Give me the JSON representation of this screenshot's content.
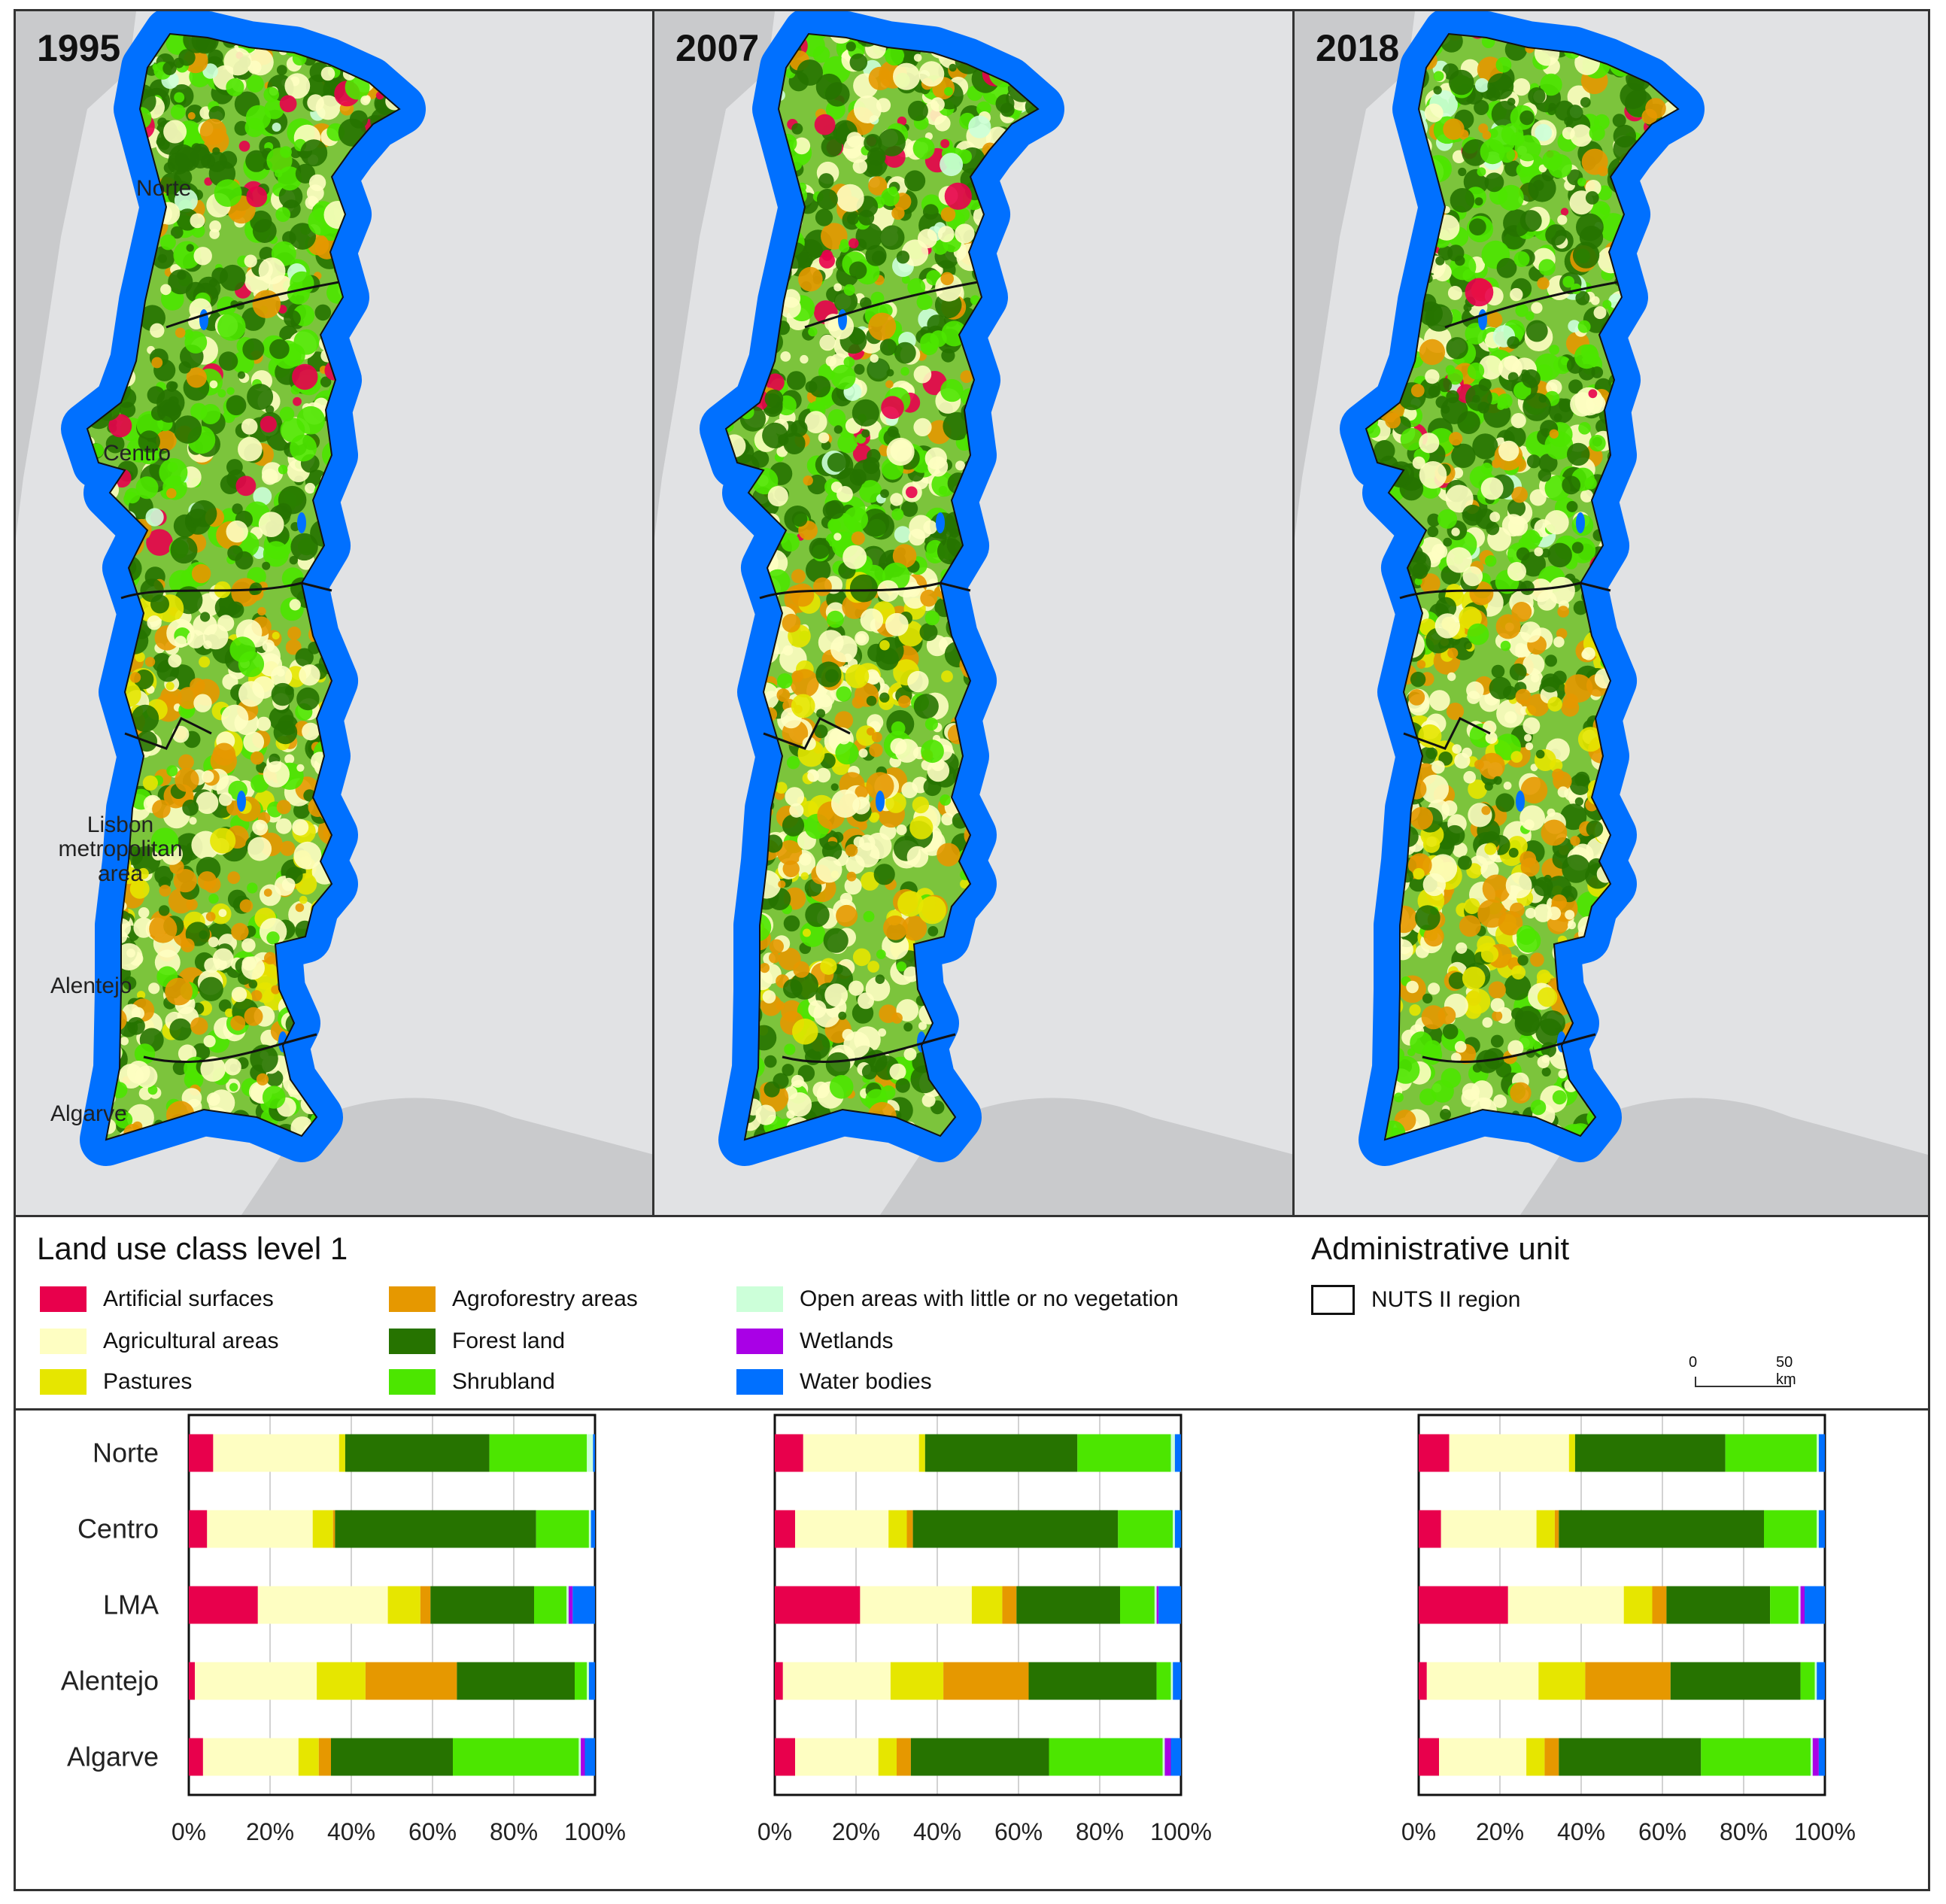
{
  "maps": [
    {
      "year": "1995"
    },
    {
      "year": "2007"
    },
    {
      "year": "2018"
    }
  ],
  "region_labels": {
    "norte": "Norte",
    "centro": "Centro",
    "lisbon": "Lisbon metropolitan area",
    "alentejo": "Alentejo",
    "algarve": "Algarve"
  },
  "legend": {
    "title": "Land use class level 1",
    "items": [
      {
        "label": "Artificial surfaces",
        "color": "#e8004c"
      },
      {
        "label": "Agricultural areas",
        "color": "#fefec2"
      },
      {
        "label": "Pastures",
        "color": "#e6e600"
      },
      {
        "label": "Agroforestry areas",
        "color": "#e69800"
      },
      {
        "label": "Forest land",
        "color": "#267300"
      },
      {
        "label": "Shrubland",
        "color": "#4ce600"
      },
      {
        "label": "Open areas with little or no vegetation",
        "color": "#ccffd9"
      },
      {
        "label": "Wetlands",
        "color": "#a900e6"
      },
      {
        "label": "Water bodies",
        "color": "#0070ff"
      }
    ],
    "admin_title": "Administrative unit",
    "admin_item": "NUTS II region",
    "scale_zero": "0",
    "scale_end": "50 km"
  },
  "chart_data": [
    {
      "type": "bar",
      "orientation": "horizontal-stacked-100",
      "year": "1995",
      "categories": [
        "Norte",
        "Centro",
        "LMA",
        "Alentejo",
        "Algarve"
      ],
      "xticks": [
        "0%",
        "20%",
        "40%",
        "60%",
        "80%",
        "100%"
      ],
      "xlim": [
        0,
        100
      ],
      "series": [
        {
          "name": "Artificial surfaces",
          "values": [
            6,
            4.5,
            17,
            1.5,
            3.5
          ]
        },
        {
          "name": "Agricultural areas",
          "values": [
            31,
            26,
            32,
            30,
            23.5
          ]
        },
        {
          "name": "Pastures",
          "values": [
            1.5,
            5,
            8,
            12,
            5
          ]
        },
        {
          "name": "Agroforestry areas",
          "values": [
            0,
            0.5,
            2.5,
            22.5,
            3
          ]
        },
        {
          "name": "Forest land",
          "values": [
            35.5,
            49.5,
            25.5,
            29,
            30
          ]
        },
        {
          "name": "Shrubland",
          "values": [
            24,
            13,
            8,
            3,
            31
          ]
        },
        {
          "name": "Open areas with little or no vegetation",
          "values": [
            1.5,
            0.5,
            0.5,
            0.5,
            0.5
          ]
        },
        {
          "name": "Wetlands",
          "values": [
            0,
            0,
            1,
            0,
            1
          ]
        },
        {
          "name": "Water bodies",
          "values": [
            0.5,
            1,
            5.5,
            1.5,
            2.5
          ]
        }
      ]
    },
    {
      "type": "bar",
      "orientation": "horizontal-stacked-100",
      "year": "2007",
      "categories": [
        "Norte",
        "Centro",
        "LMA",
        "Alentejo",
        "Algarve"
      ],
      "xticks": [
        "0%",
        "20%",
        "40%",
        "60%",
        "80%",
        "100%"
      ],
      "xlim": [
        0,
        100
      ],
      "series": [
        {
          "name": "Artificial surfaces",
          "values": [
            7,
            5,
            21,
            2,
            5
          ]
        },
        {
          "name": "Agricultural areas",
          "values": [
            28.5,
            23,
            27.5,
            26.5,
            20.5
          ]
        },
        {
          "name": "Pastures",
          "values": [
            1.5,
            4.5,
            7.5,
            13,
            4.5
          ]
        },
        {
          "name": "Agroforestry areas",
          "values": [
            0,
            1.5,
            3.5,
            21,
            3.5
          ]
        },
        {
          "name": "Forest land",
          "values": [
            37.5,
            50.5,
            25.5,
            31.5,
            34
          ]
        },
        {
          "name": "Shrubland",
          "values": [
            23,
            13.5,
            8.5,
            3.5,
            28
          ]
        },
        {
          "name": "Open areas with little or no vegetation",
          "values": [
            1,
            0.5,
            0.5,
            0.5,
            0.5
          ]
        },
        {
          "name": "Wetlands",
          "values": [
            0,
            0,
            0.5,
            0,
            1.5
          ]
        },
        {
          "name": "Water bodies",
          "values": [
            1.5,
            1.5,
            5.5,
            2,
            2.5
          ]
        }
      ]
    },
    {
      "type": "bar",
      "orientation": "horizontal-stacked-100",
      "year": "2018",
      "categories": [
        "Norte",
        "Centro",
        "LMA",
        "Alentejo",
        "Algarve"
      ],
      "xticks": [
        "0%",
        "20%",
        "40%",
        "60%",
        "80%",
        "100%"
      ],
      "xlim": [
        0,
        100
      ],
      "series": [
        {
          "name": "Artificial surfaces",
          "values": [
            7.5,
            5.5,
            22,
            2,
            5
          ]
        },
        {
          "name": "Agricultural areas",
          "values": [
            29.5,
            23.5,
            28.5,
            27.5,
            21.5
          ]
        },
        {
          "name": "Pastures",
          "values": [
            1.5,
            4.5,
            7,
            11.5,
            4.5
          ]
        },
        {
          "name": "Agroforestry areas",
          "values": [
            0,
            1,
            3.5,
            21,
            3.5
          ]
        },
        {
          "name": "Forest land",
          "values": [
            37,
            50.5,
            25.5,
            32,
            35
          ]
        },
        {
          "name": "Shrubland",
          "values": [
            22.5,
            13,
            7,
            3.5,
            27
          ]
        },
        {
          "name": "Open areas with little or no vegetation",
          "values": [
            0.5,
            0.5,
            0.5,
            0.5,
            0.5
          ]
        },
        {
          "name": "Wetlands",
          "values": [
            0,
            0,
            1,
            0,
            1.5
          ]
        },
        {
          "name": "Water bodies",
          "values": [
            1.5,
            1.5,
            5,
            2,
            1.5
          ]
        }
      ]
    }
  ]
}
